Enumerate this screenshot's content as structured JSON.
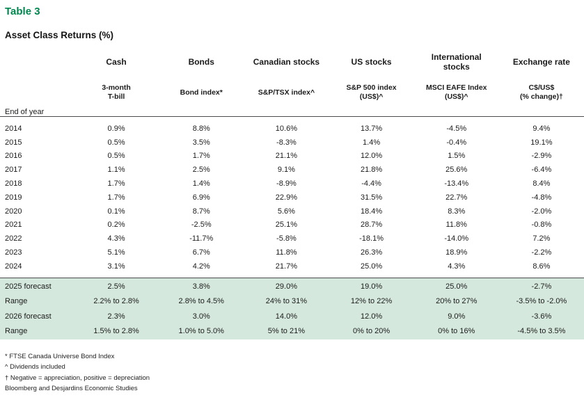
{
  "title": "Table 3",
  "subtitle": "Asset Class Returns (%)",
  "colors": {
    "accent_green": "#00874e",
    "forecast_band_green": "#d5e8dd",
    "rule_dark_gray": "#4a4a4c"
  },
  "table": {
    "row_label_header": "End of year",
    "columns": [
      {
        "group_lines": [
          "Cash"
        ],
        "index_lines": [
          "3-month",
          "T-bill"
        ]
      },
      {
        "group_lines": [
          "Bonds"
        ],
        "index_lines": [
          "Bond index*"
        ]
      },
      {
        "group_lines": [
          "Canadian stocks"
        ],
        "index_lines": [
          "S&P/TSX index^"
        ]
      },
      {
        "group_lines": [
          "US stocks"
        ],
        "index_lines": [
          "S&P 500 index",
          "(US$)^"
        ]
      },
      {
        "group_lines": [
          "International",
          "stocks"
        ],
        "index_lines": [
          "MSCI EAFE Index",
          "(US$)^"
        ]
      },
      {
        "group_lines": [
          "Exchange rate"
        ],
        "index_lines": [
          "C$/US$",
          "(% change)†"
        ]
      }
    ],
    "year_rows": [
      {
        "label": "2014",
        "values": [
          "0.9%",
          "8.8%",
          "10.6%",
          "13.7%",
          "-4.5%",
          "9.4%"
        ]
      },
      {
        "label": "2015",
        "values": [
          "0.5%",
          "3.5%",
          "-8.3%",
          "1.4%",
          "-0.4%",
          "19.1%"
        ]
      },
      {
        "label": "2016",
        "values": [
          "0.5%",
          "1.7%",
          "21.1%",
          "12.0%",
          "1.5%",
          "-2.9%"
        ]
      },
      {
        "label": "2017",
        "values": [
          "1.1%",
          "2.5%",
          "9.1%",
          "21.8%",
          "25.6%",
          "-6.4%"
        ]
      },
      {
        "label": "2018",
        "values": [
          "1.7%",
          "1.4%",
          "-8.9%",
          "-4.4%",
          "-13.4%",
          "8.4%"
        ]
      },
      {
        "label": "2019",
        "values": [
          "1.7%",
          "6.9%",
          "22.9%",
          "31.5%",
          "22.7%",
          "-4.8%"
        ]
      },
      {
        "label": "2020",
        "values": [
          "0.1%",
          "8.7%",
          "5.6%",
          "18.4%",
          "8.3%",
          "-2.0%"
        ]
      },
      {
        "label": "2021",
        "values": [
          "0.2%",
          "-2.5%",
          "25.1%",
          "28.7%",
          "11.8%",
          "-0.8%"
        ]
      },
      {
        "label": "2022",
        "values": [
          "4.3%",
          "-11.7%",
          "-5.8%",
          "-18.1%",
          "-14.0%",
          "7.2%"
        ]
      },
      {
        "label": "2023",
        "values": [
          "5.1%",
          "6.7%",
          "11.8%",
          "26.3%",
          "18.9%",
          "-2.2%"
        ]
      },
      {
        "label": "2024",
        "values": [
          "3.1%",
          "4.2%",
          "21.7%",
          "25.0%",
          "4.3%",
          "8.6%"
        ]
      }
    ],
    "forecast_rows": [
      {
        "label": "2025 forecast",
        "values": [
          "2.5%",
          "3.8%",
          "29.0%",
          "19.0%",
          "25.0%",
          "-2.7%"
        ]
      },
      {
        "label": "Range",
        "values": [
          "2.2% to 2.8%",
          "2.8% to 4.5%",
          "24% to 31%",
          "12% to 22%",
          "20% to 27%",
          "-3.5% to -2.0%"
        ]
      },
      {
        "label": "2026 forecast",
        "values": [
          "2.3%",
          "3.0%",
          "14.0%",
          "12.0%",
          "9.0%",
          "-3.6%"
        ]
      },
      {
        "label": "Range",
        "values": [
          "1.5% to 2.8%",
          "1.0% to 5.0%",
          "5% to 21%",
          "0% to 20%",
          "0% to 16%",
          "-4.5% to 3.5%"
        ]
      }
    ]
  },
  "footnotes": [
    "* FTSE Canada Universe Bond Index",
    "^ Dividends included",
    "† Negative = appreciation, positive = depreciation",
    "Bloomberg and Desjardins Economic Studies"
  ]
}
